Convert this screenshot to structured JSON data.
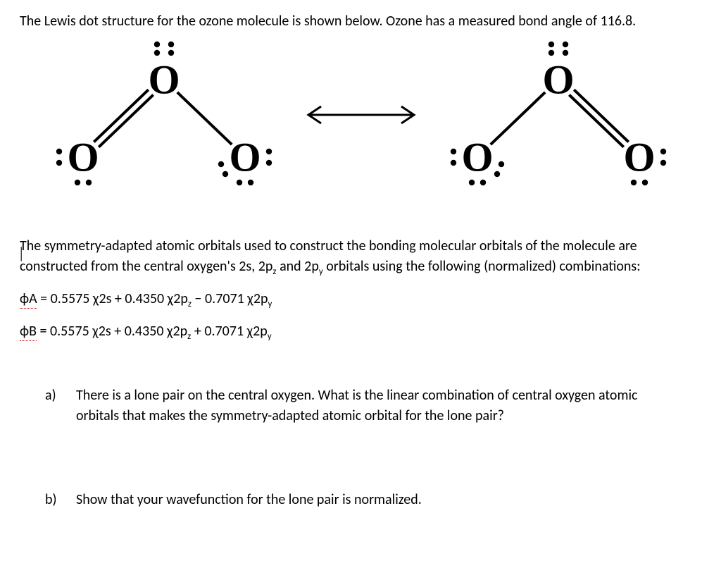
{
  "intro": "The Lewis dot structure for the ozone molecule is shown below. Ozone has a measured bond angle of 116.8.",
  "para": "The symmetry-adapted atomic orbitals used to construct the bonding molecular orbitals of the molecule are constructed from the central oxygen's 2s, 2p",
  "para_sub1": "z",
  "para_mid1": " and 2p",
  "para_sub2": "y",
  "para_end": " orbitals using the following (normalized) combinations:",
  "equations": {
    "A": {
      "phi_html": "ϕA",
      "c_2s": "0.5575",
      "c_2pz": "0.4350",
      "sign_py": "−",
      "c_2py": "0.7071"
    },
    "B": {
      "phi_html": "ϕB",
      "c_2s": "0.5575",
      "c_2pz": "0.4350",
      "sign_py": "+",
      "c_2py": "0.7071"
    }
  },
  "questions": {
    "a_label": "a)",
    "a_text": "There is a lone pair on the central oxygen. What is the linear combination of central oxygen atomic orbitals that makes the symmetry-adapted atomic orbital for the lone pair?",
    "b_label": "b)",
    "b_text": "Show that your wavefunction for the lone pair is normalized."
  },
  "figure": {
    "atom_font_family": "Times New Roman, serif",
    "atom_font_size": 58,
    "atom_font_weight": 700,
    "dot_radius": 4.2,
    "bond_width": 4,
    "color": "#000000",
    "arrow_len": 170,
    "left": {
      "double_side": "left"
    },
    "right": {
      "double_side": "right"
    }
  },
  "cursor_glyph": "|"
}
